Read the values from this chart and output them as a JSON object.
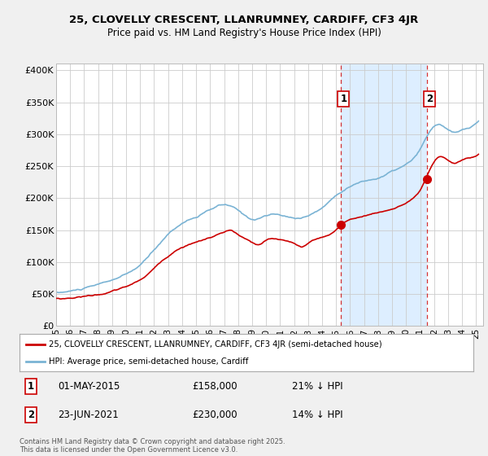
{
  "title_line1": "25, CLOVELLY CRESCENT, LLANRUMNEY, CARDIFF, CF3 4JR",
  "title_line2": "Price paid vs. HM Land Registry's House Price Index (HPI)",
  "ylabel_ticks": [
    "£0",
    "£50K",
    "£100K",
    "£150K",
    "£200K",
    "£250K",
    "£300K",
    "£350K",
    "£400K"
  ],
  "ytick_values": [
    0,
    50000,
    100000,
    150000,
    200000,
    250000,
    300000,
    350000,
    400000
  ],
  "ylim": [
    0,
    410000
  ],
  "xlim_start": 1995.0,
  "xlim_end": 2025.5,
  "hpi_color": "#7ab3d4",
  "price_color": "#cc0000",
  "shade_color": "#ddeeff",
  "point1_x": 2015.33,
  "point1_price": 158000,
  "point2_x": 2021.47,
  "point2_price": 230000,
  "point1_date": "01-MAY-2015",
  "point1_pct": "21% ↓ HPI",
  "point2_date": "23-JUN-2021",
  "point2_pct": "14% ↓ HPI",
  "legend_label1": "25, CLOVELLY CRESCENT, LLANRUMNEY, CARDIFF, CF3 4JR (semi-detached house)",
  "legend_label2": "HPI: Average price, semi-detached house, Cardiff",
  "footnote": "Contains HM Land Registry data © Crown copyright and database right 2025.\nThis data is licensed under the Open Government Licence v3.0.",
  "background_color": "#f0f0f0",
  "plot_bg_color": "#ffffff",
  "grid_color": "#cccccc"
}
